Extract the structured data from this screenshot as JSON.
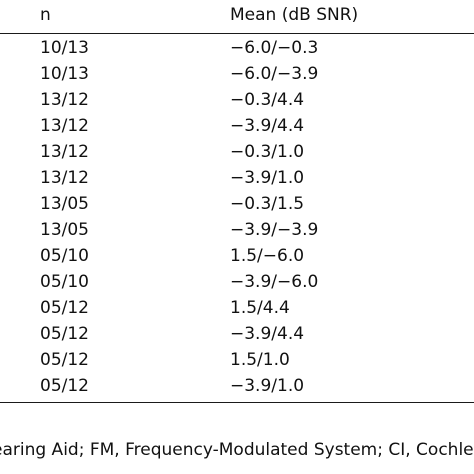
{
  "table": {
    "headers": {
      "n": "n",
      "mean": "Mean (dB SNR)"
    },
    "rows": [
      {
        "n": "10/13",
        "mean": "−6.0/−0.3"
      },
      {
        "n": "10/13",
        "mean": "−6.0/−3.9"
      },
      {
        "n": "13/12",
        "mean": "−0.3/4.4"
      },
      {
        "n": "13/12",
        "mean": "−3.9/4.4"
      },
      {
        "n": "13/12",
        "mean": "−0.3/1.0"
      },
      {
        "n": "13/12",
        "mean": "−3.9/1.0"
      },
      {
        "n": "13/05",
        "mean": "−0.3/1.5"
      },
      {
        "n": "13/05",
        "mean": "−3.9/−3.9"
      },
      {
        "n": "05/10",
        "mean": "1.5/−6.0"
      },
      {
        "n": "05/10",
        "mean": "−3.9/−6.0"
      },
      {
        "n": "05/12",
        "mean": "1.5/4.4"
      },
      {
        "n": "05/12",
        "mean": "−3.9/4.4"
      },
      {
        "n": "05/12",
        "mean": "1.5/1.0"
      },
      {
        "n": "05/12",
        "mean": "−3.9/1.0"
      }
    ]
  },
  "footnote": "earing Aid; FM, Frequency-Modulated System; CI, Cochle"
}
